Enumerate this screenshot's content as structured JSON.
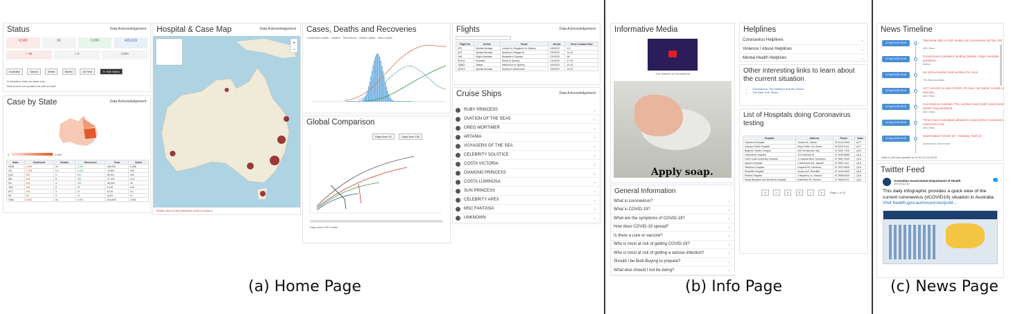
{
  "captions": {
    "home": "(a) Home Page",
    "info": "(b) Info Page",
    "news": "(c) News Page"
  },
  "colors": {
    "accent": "#4a8ed6",
    "map_land": "#f0ead8",
    "map_water": "#aed3e3",
    "heat": "#e05a2b",
    "tile_green": "#3a9a4a"
  },
  "home": {
    "status": {
      "title": "Status",
      "ack": "Data Acknowledgement",
      "buttons": [
        "Australia",
        "Global",
        "Week",
        "Month",
        "All Time",
        "Tr Visit States"
      ],
      "note": "*Cumulative total per state only.",
      "note2": "Total shown are updated as well as data."
    },
    "case_by_state": {
      "title": "Case by State",
      "ack": "Data Acknowledgement",
      "headers": [
        "State",
        "Confirmed",
        "Deaths",
        "Recovered",
        "Tests",
        "Active"
      ],
      "rows": [
        [
          "NSW",
          "2,982",
          "21",
          "1,325",
          "198,261",
          "1,636"
        ],
        [
          "VIC",
          "1,299",
          "14",
          "1,082",
          "74,567",
          "203"
        ],
        [
          "QLD",
          "987",
          "5",
          "690",
          "65,321",
          "292"
        ],
        [
          "WA",
          "545",
          "6",
          "399",
          "27,115",
          "140"
        ],
        [
          "SA",
          "433",
          "4",
          "336",
          "35,004",
          "93"
        ],
        [
          "TAS",
          "165",
          "8",
          "48",
          "6,120",
          "109"
        ],
        [
          "ACT",
          "103",
          "3",
          "84",
          "6,210",
          "16"
        ],
        [
          "NT",
          "28",
          "0",
          "16",
          "3,021",
          "12"
        ],
        [
          "Total",
          "6,542",
          "61",
          "3,980",
          "415,619",
          "2,501"
        ]
      ],
      "legend_max": "2,982"
    },
    "map": {
      "title": "Hospital & Case Map",
      "ack": "Data Acknowledgement",
      "footer": "Please click on the numbered circle to show it"
    },
    "cases_chart": {
      "title": "Cases, Deaths and Recoveries",
      "legend": [
        "Confirmed Cases",
        "Deaths",
        "Recovered",
        "Active Cases",
        "New Cases"
      ]
    },
    "global": {
      "title": "Global Comparison",
      "buttons": [
        "Days from 10",
        "Days from 100"
      ],
      "footer": "Days since 100 Cases"
    },
    "flights": {
      "title": "Flights",
      "ack": "Data Acknowledgement",
      "headers": [
        "Flight No",
        "Airline",
        "Route",
        "Arrival",
        "Close Contact Row"
      ],
      "rows": [
        [
          "QF1",
          "Qantas Airways",
          "London to Singapore to Sydney",
          "24/03/20",
          "1-5"
        ],
        [
          "QF2",
          "Qantas Airways",
          "Sydney to Singapore",
          "23/03/20",
          "14-16"
        ],
        [
          "VA8",
          "Virgin Australia",
          "Brisbane to Sydney",
          "22/03/20",
          "All"
        ],
        [
          "EK414",
          "Emirates",
          "Dubai to Sydney",
          "21/03/20",
          "27-33"
        ],
        [
          "JQ563",
          "Jetstar",
          "Melbourne to Sydney",
          "20/03/20",
          "10-14"
        ],
        [
          "QF410",
          "Qantas Airways",
          "Sydney to Melbourne",
          "19/03/20",
          "19-23"
        ]
      ]
    },
    "cruise": {
      "title": "Cruise Ships",
      "ack": "Data Acknowledgement",
      "ships": [
        "RUBY PRINCESS",
        "OVATION OF THE SEAS",
        "GREG MORTIMER",
        "ARTANIA",
        "VOYAGERS OF THE SEA",
        "CELEBRITY SOLSTICE",
        "COSTA VICTORIA",
        "DIAMOND PRINCESS",
        "COSTA LUMINOSA",
        "SUN PRINCESS",
        "CELEBRITY APEX",
        "MSC FANTASIA",
        "UNKNOWN"
      ]
    }
  },
  "info": {
    "media": {
      "title": "Informative Media",
      "video_caption": "The Science of Coronavirus",
      "image_caption": "Apply soap."
    },
    "general": {
      "title": "General Information",
      "items": [
        "What is coronavirus?",
        "What is COVID-19?",
        "What are the symptoms of COVID-19?",
        "How does COVID-19 spread?",
        "Is there a cure or vaccine?",
        "Who is most at risk of getting COVID-19?",
        "Who is most at risk of getting a serious infection?",
        "Should I be Bulk-Buying to prepare?",
        "What else should I not be doing?"
      ]
    },
    "helplines": {
      "title": "Helplines",
      "items": [
        "Coronavirus Helplines",
        "Violence / Abuse Helplines",
        "Mental Health Helplines"
      ]
    },
    "links": {
      "title": "Other interesting links to learn about the current situation",
      "items": [
        "Coronavirus: The Hammer and the Dance",
        "The New York Times",
        "Flattening the curve"
      ]
    },
    "hospitals": {
      "title": "List of Hospitals doing Coronavirus testing",
      "headers": [
        "Hospital",
        "Address",
        "Phone",
        "State"
      ],
      "rows": [
        [
          "Canberra Hospital",
          "Yamba Dr, Garran",
          "02 5124 0000",
          "ACT"
        ],
        [
          "Calvary Public Hospital",
          "Mary Potter Cct, Bruce",
          "02 6201 6111",
          "ACT"
        ],
        [
          "Brighton Health Campus",
          "449 Hornibrook Hwy",
          "07 3631 7000",
          "QLD"
        ],
        [
          "Caboolture Hospital",
          "120 McKean St",
          "07 5433 8888",
          "QLD"
        ],
        [
          "Gold Coast University Hospital",
          "1 Hospital Blvd, Southport",
          "07 5687 0000",
          "QLD"
        ],
        [
          "Ipswich Hospital",
          "Chelmsford Ave, Ipswich",
          "07 3810 1111",
          "QLD"
        ],
        [
          "Nambour Hospital",
          "Hospital Rd, Nambour",
          "07 5470 6600",
          "QLD"
        ],
        [
          "Redcliffe Hospital",
          "Anzac Ave, Redcliffe",
          "07 3049 6900",
          "QLD"
        ],
        [
          "Robina Hospital",
          "2 Bayberry Ln, Robina",
          "07 5668 6000",
          "QLD"
        ],
        [
          "Royal Brisbane and Women's Hospital",
          "Butterfield St, Herston",
          "07 3646 8111",
          "QLD"
        ]
      ],
      "pagination": [
        "«",
        "‹",
        "1",
        "2",
        "›",
        "»"
      ],
      "page_info": "Page 1 of 10"
    }
  },
  "news": {
    "timeline": {
      "title": "News Timeline",
      "items": [
        {
          "date": "12 April 2020 16:00",
          "text": "Tasmania calls in ADF medics as coronavirus toll hits 150",
          "src": "ABC News"
        },
        {
          "date": "12 April 2020 14:00",
          "text": "Government considers funding Qantas, Virgin Australia to fly to pandemic",
          "src": "9News"
        },
        {
          "date": "12 April 2020 12:00",
          "text": "SA school worker tests positive for virus",
          "src": "The West Australian"
        },
        {
          "date": "12 April 2020 10:00",
          "text": "ACT records no new COVID-19 case, but Easter crowds prompt warning",
          "src": "ABC News"
        },
        {
          "date": "12 April 2020 08:00",
          "text": "Coronavirus Australia: The numbers and Gold Coast border over Easter long weekend",
          "src": "ABC News"
        },
        {
          "date": "12 April 2020 06:00",
          "text": "Three more Australians allowed to pass before Coronavirus restrictions end",
          "src": "ABC News"
        },
        {
          "date": "12 April 2020 04:00",
          "text": "Queensland COVID-19 – Monday, April 13",
          "src": "Queensland Government"
        }
      ],
      "footer": "Data is 403 last updated at 11:03 12-04-2020"
    },
    "twitter": {
      "title": "Twitter Feed",
      "account": "Australian Government Department of Health",
      "handle": "@healthgovau",
      "tweet_lines": [
        "This daily infographic provides a quick view of the",
        "current coronavirus (#COVID19) situation in Australia.",
        "Visit health.gov.au/resources/publ..."
      ]
    }
  }
}
